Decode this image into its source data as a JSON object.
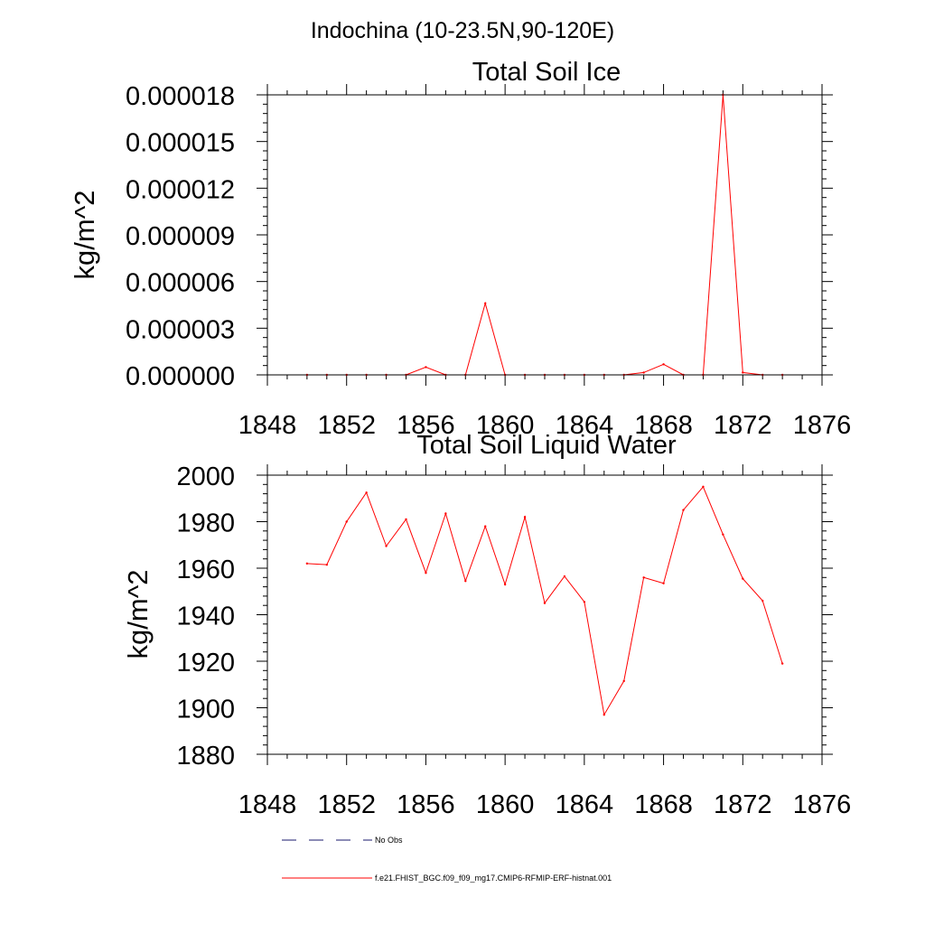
{
  "figure": {
    "main_title": "Indochina (10-23.5N,90-120E)"
  },
  "chart_data": [
    {
      "type": "line",
      "title": "Total Soil Ice",
      "xlabel": "",
      "ylabel": "kg/m^2",
      "xlim": [
        1848,
        1876
      ],
      "ylim": [
        0,
        1.8e-05
      ],
      "x_ticks": [
        1848,
        1852,
        1856,
        1860,
        1864,
        1868,
        1872,
        1876
      ],
      "y_ticks": [
        0,
        3e-06,
        6e-06,
        9e-06,
        1.2e-05,
        1.5e-05,
        1.8e-05
      ],
      "y_tick_labels": [
        "0.000000",
        "0.000003",
        "0.000006",
        "0.000009",
        "0.000012",
        "0.000015",
        "0.000018"
      ],
      "grid": false,
      "series": [
        {
          "name": "f.e21.FHIST_BGC.f09_f09_mg17.CMIP6-RFMIP-ERF-histnat.001",
          "color": "#ff0000",
          "x": [
            1850,
            1851,
            1852,
            1853,
            1854,
            1855,
            1856,
            1857,
            1858,
            1859,
            1860,
            1861,
            1862,
            1863,
            1864,
            1865,
            1866,
            1867,
            1868,
            1869,
            1870,
            1871,
            1872,
            1873,
            1874
          ],
          "y": [
            0,
            0,
            0,
            0,
            0,
            0,
            5e-07,
            0,
            0,
            4.6e-06,
            0,
            0,
            0,
            0,
            0,
            0,
            0,
            1.5e-07,
            6.8e-07,
            0,
            0,
            1.8e-05,
            1.5e-07,
            0,
            0
          ]
        }
      ]
    },
    {
      "type": "line",
      "title": "Total Soil Liquid Water",
      "xlabel": "",
      "ylabel": "kg/m^2",
      "xlim": [
        1848,
        1876
      ],
      "ylim": [
        1880,
        2000
      ],
      "x_ticks": [
        1848,
        1852,
        1856,
        1860,
        1864,
        1868,
        1872,
        1876
      ],
      "y_ticks": [
        1880,
        1900,
        1920,
        1940,
        1960,
        1980,
        2000
      ],
      "y_tick_labels": [
        "1880",
        "1900",
        "1920",
        "1940",
        "1960",
        "1980",
        "2000"
      ],
      "grid": false,
      "series": [
        {
          "name": "f.e21.FHIST_BGC.f09_f09_mg17.CMIP6-RFMIP-ERF-histnat.001",
          "color": "#ff0000",
          "x": [
            1850,
            1851,
            1852,
            1853,
            1854,
            1855,
            1856,
            1857,
            1858,
            1859,
            1860,
            1861,
            1862,
            1863,
            1864,
            1865,
            1866,
            1867,
            1868,
            1869,
            1870,
            1871,
            1872,
            1873,
            1874
          ],
          "y": [
            1962,
            1961.5,
            1980,
            1992.5,
            1969.5,
            1981,
            1958,
            1983.5,
            1954.5,
            1978,
            1953,
            1982,
            1945,
            1956.5,
            1945.5,
            1897,
            1911.5,
            1956,
            1953.5,
            1985,
            1995,
            1974.5,
            1955.5,
            1946,
            1919
          ]
        }
      ]
    }
  ],
  "legend": {
    "position": "bottom-left",
    "entries": [
      {
        "label": "No Obs",
        "style": "dashed",
        "color": "#1a1a6e"
      },
      {
        "label": "f.e21.FHIST_BGC.f09_f09_mg17.CMIP6-RFMIP-ERF-histnat.001",
        "style": "solid",
        "color": "#ff0000"
      }
    ]
  }
}
